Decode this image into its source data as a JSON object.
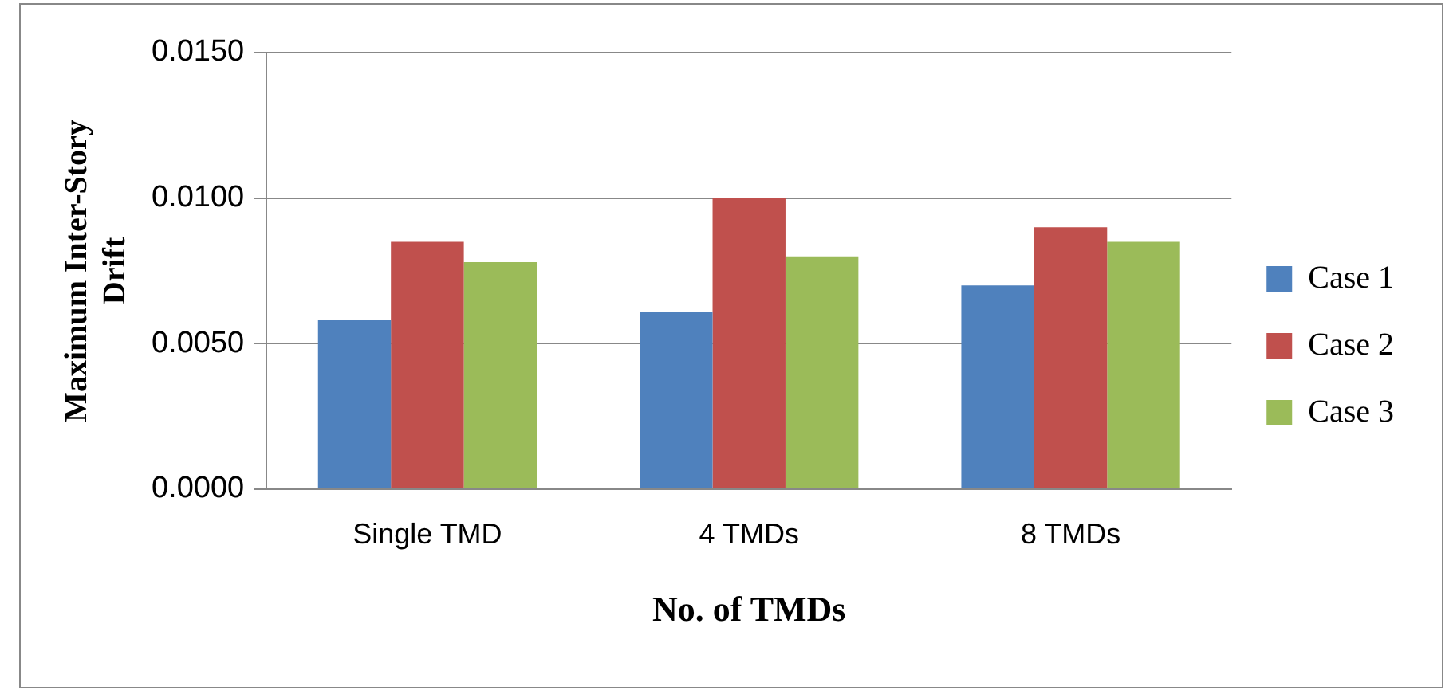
{
  "chart_data": {
    "type": "bar",
    "xlabel": "No. of TMDs",
    "ylabel": "Maximum Inter-Story\nDrift",
    "categories": [
      "Single TMD",
      "4 TMDs",
      "8 TMDs"
    ],
    "series": [
      {
        "name": "Case 1",
        "color": "#4f81bd",
        "values": [
          0.0058,
          0.0061,
          0.007
        ]
      },
      {
        "name": "Case 2",
        "color": "#c0504d",
        "values": [
          0.0085,
          0.01,
          0.009
        ]
      },
      {
        "name": "Case 3",
        "color": "#9bbb59",
        "values": [
          0.0078,
          0.008,
          0.0085
        ]
      }
    ],
    "ylim": [
      0,
      0.015
    ],
    "yticks": [
      {
        "value": 0,
        "label": "0.0000"
      },
      {
        "value": 0.005,
        "label": "0.0050"
      },
      {
        "value": 0.01,
        "label": "0.0100"
      },
      {
        "value": 0.015,
        "label": "0.0150"
      }
    ],
    "grid": "y",
    "legend": "right"
  }
}
